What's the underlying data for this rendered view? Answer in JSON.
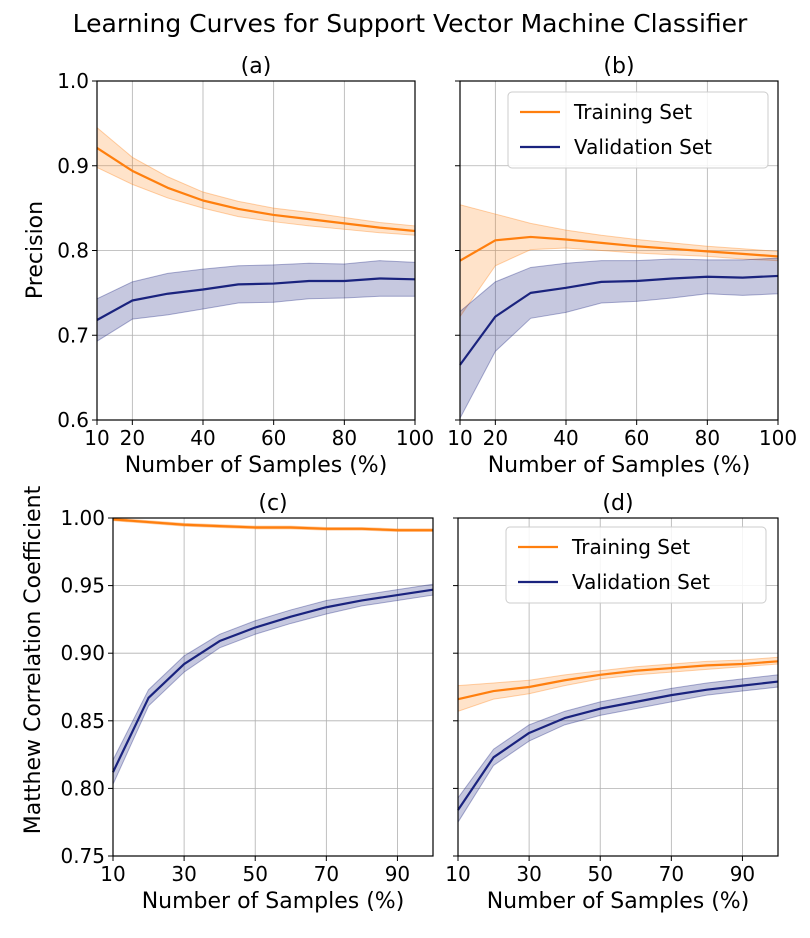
{
  "figure": {
    "title": "Learning Curves for Support Vector Machine Classifier",
    "colors": {
      "training": "#ff7f0e",
      "validation": "#1a237e"
    }
  },
  "chart_data": [
    {
      "type": "line",
      "panel": "(a)",
      "title": "(a)",
      "xlabel": "Number of Samples (%)",
      "ylabel": "Precision",
      "xlim": [
        10,
        100
      ],
      "ylim": [
        0.6,
        1.0
      ],
      "xticks": [
        10,
        20,
        40,
        60,
        80,
        100
      ],
      "yticks": [
        0.6,
        0.7,
        0.8,
        0.9,
        1.0
      ],
      "ytick_labels": [
        "0.6",
        "0.7",
        "0.8",
        "0.9",
        "1.0"
      ],
      "grid": true,
      "legend": null,
      "x": [
        10,
        20,
        30,
        40,
        50,
        60,
        70,
        80,
        90,
        100
      ],
      "series": [
        {
          "name": "Training Set",
          "color": "#ff7f0e",
          "values": [
            0.921,
            0.894,
            0.874,
            0.859,
            0.849,
            0.842,
            0.837,
            0.832,
            0.827,
            0.823
          ],
          "lower": [
            0.898,
            0.878,
            0.862,
            0.85,
            0.84,
            0.834,
            0.829,
            0.825,
            0.821,
            0.818
          ],
          "upper": [
            0.945,
            0.91,
            0.887,
            0.869,
            0.858,
            0.85,
            0.845,
            0.839,
            0.833,
            0.829
          ]
        },
        {
          "name": "Validation Set",
          "color": "#1a237e",
          "values": [
            0.718,
            0.741,
            0.749,
            0.754,
            0.76,
            0.761,
            0.764,
            0.764,
            0.767,
            0.766
          ],
          "lower": [
            0.693,
            0.719,
            0.724,
            0.731,
            0.738,
            0.739,
            0.743,
            0.744,
            0.746,
            0.746
          ],
          "upper": [
            0.743,
            0.763,
            0.773,
            0.778,
            0.782,
            0.783,
            0.785,
            0.784,
            0.788,
            0.786
          ]
        }
      ]
    },
    {
      "type": "line",
      "panel": "(b)",
      "title": "(b)",
      "xlabel": "Number of Samples (%)",
      "ylabel": "",
      "xlim": [
        10,
        100
      ],
      "ylim": [
        0.6,
        1.0
      ],
      "xticks": [
        10,
        20,
        40,
        60,
        80,
        100
      ],
      "yticks": [
        0.6,
        0.7,
        0.8,
        0.9,
        1.0
      ],
      "ytick_labels": [],
      "grid": true,
      "legend": "upper-right",
      "x": [
        10,
        20,
        30,
        40,
        50,
        60,
        70,
        80,
        90,
        100
      ],
      "series": [
        {
          "name": "Training Set",
          "color": "#ff7f0e",
          "values": [
            0.788,
            0.812,
            0.816,
            0.813,
            0.809,
            0.805,
            0.802,
            0.799,
            0.796,
            0.793
          ],
          "lower": [
            0.722,
            0.782,
            0.801,
            0.803,
            0.8,
            0.797,
            0.795,
            0.793,
            0.79,
            0.788
          ],
          "upper": [
            0.854,
            0.843,
            0.832,
            0.824,
            0.818,
            0.813,
            0.809,
            0.805,
            0.802,
            0.799
          ]
        },
        {
          "name": "Validation Set",
          "color": "#1a237e",
          "values": [
            0.665,
            0.722,
            0.75,
            0.756,
            0.763,
            0.764,
            0.767,
            0.769,
            0.768,
            0.77
          ],
          "lower": [
            0.602,
            0.681,
            0.72,
            0.727,
            0.738,
            0.74,
            0.744,
            0.749,
            0.747,
            0.749
          ],
          "upper": [
            0.728,
            0.763,
            0.78,
            0.785,
            0.788,
            0.788,
            0.79,
            0.789,
            0.789,
            0.791
          ]
        }
      ]
    },
    {
      "type": "line",
      "panel": "(c)",
      "title": "(c)",
      "xlabel": "Number of Samples (%)",
      "ylabel": "Matthew Correlation Coefficient",
      "xlim": [
        10,
        100
      ],
      "ylim": [
        0.75,
        1.0
      ],
      "xticks": [
        10,
        30,
        50,
        70,
        90
      ],
      "yticks": [
        0.75,
        0.8,
        0.85,
        0.9,
        0.95,
        1.0
      ],
      "ytick_labels": [
        "0.75",
        "0.80",
        "0.85",
        "0.90",
        "0.95",
        "1.00"
      ],
      "grid": true,
      "legend": null,
      "x": [
        10,
        20,
        30,
        40,
        50,
        60,
        70,
        80,
        90,
        100
      ],
      "series": [
        {
          "name": "Training Set",
          "color": "#ff7f0e",
          "values": [
            0.999,
            0.997,
            0.995,
            0.994,
            0.993,
            0.993,
            0.992,
            0.992,
            0.991,
            0.991
          ],
          "lower": [
            0.998,
            0.996,
            0.994,
            0.993,
            0.992,
            0.992,
            0.991,
            0.991,
            0.99,
            0.99
          ],
          "upper": [
            1.0,
            0.998,
            0.996,
            0.995,
            0.994,
            0.994,
            0.993,
            0.993,
            0.992,
            0.992
          ]
        },
        {
          "name": "Validation Set",
          "color": "#1a237e",
          "values": [
            0.812,
            0.867,
            0.892,
            0.909,
            0.919,
            0.927,
            0.934,
            0.939,
            0.943,
            0.947
          ],
          "lower": [
            0.803,
            0.861,
            0.886,
            0.904,
            0.914,
            0.922,
            0.929,
            0.935,
            0.939,
            0.943
          ],
          "upper": [
            0.821,
            0.873,
            0.898,
            0.914,
            0.924,
            0.932,
            0.939,
            0.943,
            0.947,
            0.951
          ]
        }
      ]
    },
    {
      "type": "line",
      "panel": "(d)",
      "title": "(d)",
      "xlabel": "Number of Samples (%)",
      "ylabel": "",
      "xlim": [
        10,
        100
      ],
      "ylim": [
        0.75,
        1.0
      ],
      "xticks": [
        10,
        30,
        50,
        70,
        90
      ],
      "yticks": [
        0.75,
        0.8,
        0.85,
        0.9,
        0.95,
        1.0
      ],
      "ytick_labels": [],
      "grid": true,
      "legend": "upper-right",
      "x": [
        10,
        20,
        30,
        40,
        50,
        60,
        70,
        80,
        90,
        100
      ],
      "series": [
        {
          "name": "Training Set",
          "color": "#ff7f0e",
          "values": [
            0.866,
            0.872,
            0.875,
            0.88,
            0.884,
            0.887,
            0.889,
            0.891,
            0.892,
            0.894
          ],
          "lower": [
            0.857,
            0.866,
            0.87,
            0.876,
            0.881,
            0.884,
            0.886,
            0.888,
            0.89,
            0.892
          ],
          "upper": [
            0.876,
            0.878,
            0.88,
            0.884,
            0.887,
            0.89,
            0.892,
            0.894,
            0.895,
            0.897
          ]
        },
        {
          "name": "Validation Set",
          "color": "#1a237e",
          "values": [
            0.784,
            0.823,
            0.841,
            0.852,
            0.859,
            0.864,
            0.869,
            0.873,
            0.876,
            0.879
          ],
          "lower": [
            0.775,
            0.817,
            0.835,
            0.847,
            0.854,
            0.859,
            0.864,
            0.869,
            0.872,
            0.875
          ],
          "upper": [
            0.793,
            0.829,
            0.847,
            0.857,
            0.864,
            0.869,
            0.874,
            0.878,
            0.881,
            0.884
          ]
        }
      ]
    }
  ]
}
